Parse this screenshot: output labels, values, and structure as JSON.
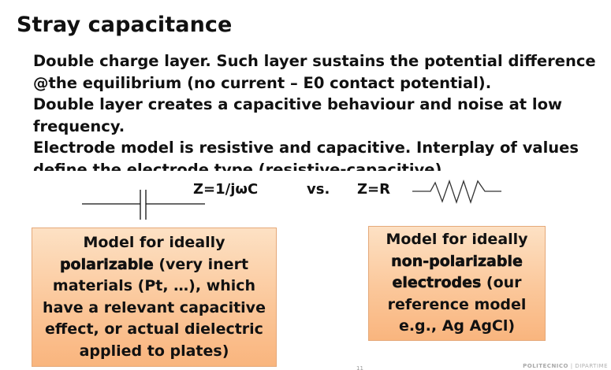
{
  "slide": {
    "title": "Stray capacitance",
    "lines": [
      "Double charge layer. Such layer sustains the potential difference",
      "@the equilibrium (no current – E0 contact potential).",
      "Double layer creates a capacitive behaviour and noise at low",
      "frequency.",
      "Electrode model is resistive and capacitive. Interplay of values"
    ],
    "last_line_partial": "define the electrode type (resistive-capacitive)"
  },
  "formulas": {
    "capacitor": "Z=1/jωC",
    "vs": "vs.",
    "resistor": "Z=R"
  },
  "boxes": {
    "left": {
      "line1": "Model for ideally",
      "strong": "polarizable",
      "line2_rest": " (very inert",
      "line3": "materials (Pt, …), which",
      "line4": "have a relevant capacitive",
      "line5": "effect, or actual dielectric",
      "line6": "applied to plates)"
    },
    "right": {
      "line1": "Model for ideally",
      "strong1": "non-polarizable",
      "strong2": "electrodes",
      "line3_rest": " (our",
      "line4": "reference model",
      "line5": "e.g., Ag AgCl)"
    }
  },
  "footer": {
    "org": "POLITECNICO",
    "sep": " | ",
    "dept": "DIPARTIME"
  },
  "page_number": "11"
}
